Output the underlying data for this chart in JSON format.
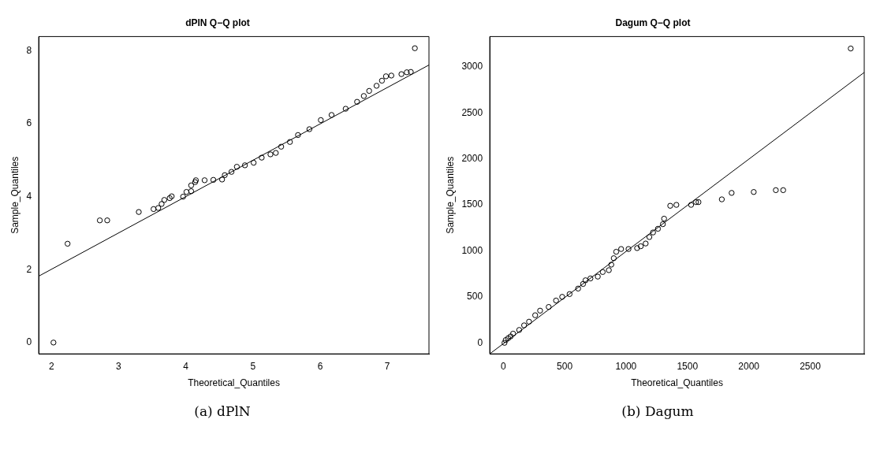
{
  "chart_data": [
    {
      "type": "scatter",
      "title": "dPlN Q−Q plot",
      "xlabel": "Theoretical_Quantiles",
      "ylabel": "Sample_Quantiles",
      "xlim": [
        1.81,
        7.62
      ],
      "ylim": [
        -0.31,
        8.39
      ],
      "xticks": [
        2,
        3,
        4,
        5,
        6,
        7
      ],
      "yticks": [
        0,
        2,
        4,
        6,
        8
      ],
      "grid": false,
      "legend": false,
      "annotations": [
        "(a) dPlN"
      ],
      "series": [
        {
          "type": "scatter",
          "marker": "circle",
          "color": "#000000",
          "x": [
            2.03,
            2.24,
            2.72,
            2.83,
            3.3,
            3.52,
            3.59,
            3.64,
            3.68,
            3.76,
            3.79,
            3.96,
            4.01,
            4.08,
            4.08,
            4.14,
            4.15,
            4.28,
            4.41,
            4.54,
            4.58,
            4.68,
            4.76,
            4.88,
            5.01,
            5.13,
            5.26,
            5.34,
            5.42,
            5.55,
            5.67,
            5.84,
            6.01,
            6.17,
            6.38,
            6.55,
            6.65,
            6.73,
            6.84,
            6.92,
            6.98,
            7.06,
            7.21,
            7.29,
            7.35,
            7.41
          ],
          "values": [
            0,
            2.71,
            3.35,
            3.35,
            3.58,
            3.66,
            3.69,
            3.8,
            3.91,
            3.96,
            4.01,
            4.0,
            4.13,
            4.15,
            4.31,
            4.4,
            4.45,
            4.45,
            4.46,
            4.47,
            4.59,
            4.68,
            4.82,
            4.86,
            4.93,
            5.07,
            5.16,
            5.2,
            5.37,
            5.5,
            5.69,
            5.85,
            6.1,
            6.24,
            6.41,
            6.6,
            6.76,
            6.9,
            7.04,
            7.18,
            7.3,
            7.32,
            7.36,
            7.41,
            7.42,
            8.07
          ]
        },
        {
          "type": "line",
          "marker": "none",
          "line_style": "solid",
          "color": "#000000",
          "x": [
            1.81,
            7.62
          ],
          "values": [
            1.82,
            7.61
          ]
        }
      ]
    },
    {
      "type": "scatter",
      "title": "Dagum Q−Q plot",
      "xlabel": "Theoretical_Quantiles",
      "ylabel": "Sample_Quantiles",
      "xlim": [
        -110,
        2940
      ],
      "ylim": [
        -120,
        3330
      ],
      "xticks": [
        0,
        500,
        1000,
        1500,
        2000,
        2500
      ],
      "yticks": [
        0,
        500,
        1000,
        1500,
        2000,
        2500,
        3000
      ],
      "grid": false,
      "legend": false,
      "annotations": [
        "(b) Dagum"
      ],
      "series": [
        {
          "type": "scatter",
          "marker": "circle",
          "color": "#000000",
          "x": [
            10,
            20,
            40,
            60,
            80,
            130,
            170,
            210,
            260,
            300,
            370,
            430,
            480,
            540,
            610,
            650,
            670,
            710,
            770,
            810,
            860,
            880,
            900,
            920,
            960,
            1020,
            1090,
            1120,
            1160,
            1190,
            1220,
            1260,
            1300,
            1310,
            1360,
            1410,
            1530,
            1570,
            1590,
            1780,
            1860,
            2040,
            2220,
            2280,
            2830
          ],
          "values": [
            0,
            30,
            50,
            70,
            100,
            140,
            190,
            230,
            300,
            350,
            390,
            460,
            500,
            530,
            590,
            640,
            680,
            700,
            720,
            770,
            790,
            850,
            920,
            990,
            1020,
            1020,
            1030,
            1050,
            1080,
            1150,
            1200,
            1240,
            1290,
            1350,
            1490,
            1500,
            1500,
            1530,
            1530,
            1560,
            1630,
            1640,
            1660,
            1660,
            3200
          ]
        },
        {
          "type": "line",
          "marker": "none",
          "line_style": "solid",
          "color": "#000000",
          "x": [
            -110,
            2940
          ],
          "values": [
            -120,
            2940
          ]
        }
      ]
    }
  ]
}
